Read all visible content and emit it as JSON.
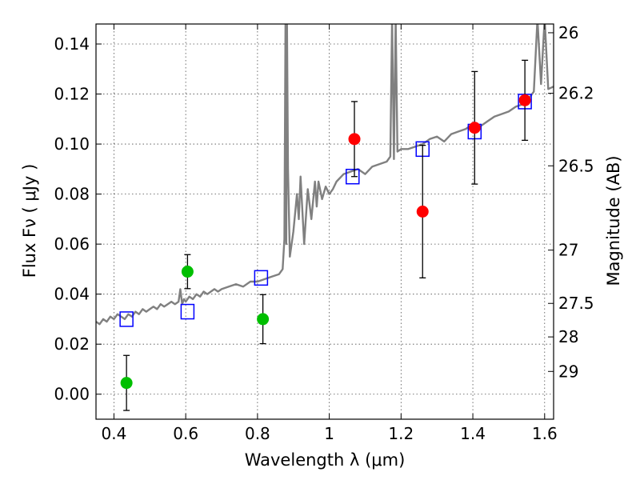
{
  "chart_data": {
    "type": "scatter",
    "title": "",
    "xlabel": "Wavelength  λ (μm)",
    "ylabel": "Flux  Fν  ( μJy )",
    "ylabel_right": "Magnitude (AB)",
    "xlim": [
      0.35,
      1.625
    ],
    "ylim": [
      -0.01,
      0.148
    ],
    "grid": true,
    "x_ticks": [
      0.4,
      0.6,
      0.8,
      1.0,
      1.2,
      1.4,
      1.6
    ],
    "x_tick_labels": [
      "0.4",
      "0.6",
      "0.8",
      "1",
      "1.2",
      "1.4",
      "1.6"
    ],
    "y_ticks": [
      0.0,
      0.02,
      0.04,
      0.06,
      0.08,
      0.1,
      0.12,
      0.14
    ],
    "y_tick_labels": [
      "0.00",
      "0.02",
      "0.04",
      "0.06",
      "0.08",
      "0.10",
      "0.12",
      "0.14"
    ],
    "right_ticks": [
      {
        "label": "26",
        "flux": 0.1445
      },
      {
        "label": "26.2",
        "flux": 0.1203
      },
      {
        "label": "26.5",
        "flux": 0.0913
      },
      {
        "label": "27",
        "flux": 0.0576
      },
      {
        "label": "27.5",
        "flux": 0.0363
      },
      {
        "label": "28",
        "flux": 0.0229
      },
      {
        "label": "29",
        "flux": 0.0091
      }
    ],
    "colors": {
      "spectrum": "#808080",
      "model": "#0000ff",
      "optical": "#00bf00",
      "nir": "#ff0000",
      "errorbar": "#000000"
    },
    "series": [
      {
        "name": "model-spectrum",
        "kind": "line",
        "x": [
          0.35,
          0.36,
          0.37,
          0.38,
          0.39,
          0.4,
          0.41,
          0.42,
          0.43,
          0.44,
          0.45,
          0.46,
          0.47,
          0.48,
          0.49,
          0.5,
          0.51,
          0.52,
          0.53,
          0.54,
          0.55,
          0.56,
          0.57,
          0.58,
          0.585,
          0.59,
          0.595,
          0.6,
          0.61,
          0.62,
          0.63,
          0.64,
          0.65,
          0.66,
          0.67,
          0.68,
          0.69,
          0.7,
          0.72,
          0.74,
          0.76,
          0.78,
          0.8,
          0.82,
          0.84,
          0.86,
          0.87,
          0.875,
          0.878,
          0.88,
          0.882,
          0.885,
          0.89,
          0.9,
          0.91,
          0.915,
          0.92,
          0.93,
          0.94,
          0.95,
          0.96,
          0.965,
          0.97,
          0.98,
          0.99,
          1.0,
          1.01,
          1.02,
          1.04,
          1.06,
          1.08,
          1.1,
          1.12,
          1.14,
          1.16,
          1.17,
          1.175,
          1.18,
          1.185,
          1.19,
          1.2,
          1.22,
          1.24,
          1.26,
          1.28,
          1.3,
          1.32,
          1.34,
          1.36,
          1.38,
          1.4,
          1.42,
          1.44,
          1.46,
          1.48,
          1.5,
          1.52,
          1.54,
          1.55,
          1.56,
          1.57,
          1.58,
          1.59,
          1.6,
          1.61,
          1.625
        ],
        "y": [
          0.029,
          0.028,
          0.03,
          0.029,
          0.031,
          0.03,
          0.032,
          0.031,
          0.03,
          0.032,
          0.031,
          0.033,
          0.032,
          0.034,
          0.033,
          0.034,
          0.035,
          0.034,
          0.036,
          0.035,
          0.036,
          0.037,
          0.036,
          0.037,
          0.042,
          0.036,
          0.038,
          0.037,
          0.039,
          0.038,
          0.04,
          0.039,
          0.041,
          0.04,
          0.041,
          0.042,
          0.041,
          0.042,
          0.043,
          0.044,
          0.043,
          0.045,
          0.045,
          0.046,
          0.047,
          0.048,
          0.05,
          0.062,
          0.15,
          0.06,
          0.15,
          0.09,
          0.055,
          0.065,
          0.08,
          0.07,
          0.087,
          0.06,
          0.082,
          0.07,
          0.085,
          0.075,
          0.085,
          0.078,
          0.083,
          0.08,
          0.082,
          0.085,
          0.088,
          0.089,
          0.09,
          0.088,
          0.091,
          0.092,
          0.093,
          0.095,
          0.15,
          0.094,
          0.15,
          0.097,
          0.098,
          0.098,
          0.099,
          0.1,
          0.102,
          0.103,
          0.101,
          0.104,
          0.105,
          0.106,
          0.108,
          0.107,
          0.109,
          0.111,
          0.112,
          0.113,
          0.115,
          0.116,
          0.118,
          0.119,
          0.121,
          0.15,
          0.124,
          0.15,
          0.122,
          0.123
        ]
      },
      {
        "name": "model-photometry",
        "kind": "open-square",
        "x": [
          0.435,
          0.605,
          0.81,
          1.065,
          1.26,
          1.405,
          1.545
        ],
        "y": [
          0.03,
          0.033,
          0.0465,
          0.087,
          0.098,
          0.105,
          0.117
        ]
      },
      {
        "name": "optical-detections",
        "kind": "filled-circle",
        "x": [
          0.435,
          0.605,
          0.815
        ],
        "y": [
          0.0045,
          0.049,
          0.03
        ],
        "yerr": [
          0.011,
          0.0068,
          0.0098
        ]
      },
      {
        "name": "nir-detections",
        "kind": "filled-circle",
        "x": [
          1.07,
          1.26,
          1.405,
          1.545
        ],
        "y": [
          0.102,
          0.073,
          0.1065,
          0.1175
        ],
        "yerr": [
          0.015,
          0.0265,
          0.0225,
          0.016
        ]
      }
    ]
  }
}
